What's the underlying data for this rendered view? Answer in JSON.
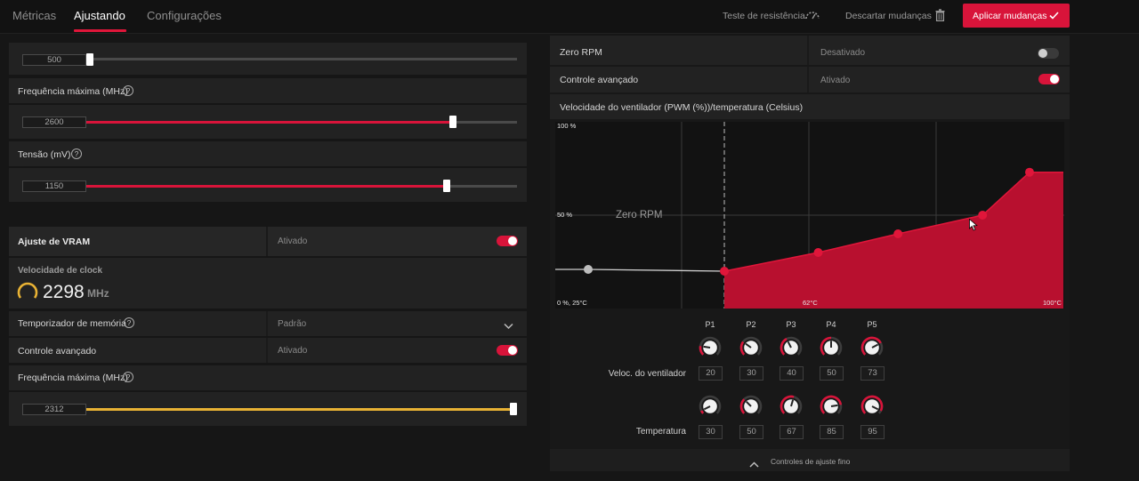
{
  "tabs": [
    {
      "label": "Métricas",
      "active": false
    },
    {
      "label": "Ajustando",
      "active": true
    },
    {
      "label": "Configurações",
      "active": false
    }
  ],
  "toolbar": {
    "stress_test": "Teste de resistência",
    "discard": "Descartar mudanças",
    "apply": "Aplicar mudanças"
  },
  "gpu": {
    "min_freq_value": "500",
    "max_freq_label": "Frequência máxima (MHz)",
    "max_freq_value": "2600",
    "voltage_label": "Tensão (mV)",
    "voltage_value": "1150"
  },
  "vram": {
    "title": "Ajuste de VRAM",
    "status": "Ativado",
    "clock_label": "Velocidade de clock",
    "clock_value": "2298",
    "clock_unit": "MHz",
    "mem_timing_label": "Temporizador de memória",
    "mem_timing_value": "Padrão",
    "advanced_label": "Controle avançado",
    "advanced_value": "Ativado",
    "max_freq_label": "Frequência máxima (MHz)",
    "max_freq_value": "2312"
  },
  "fan": {
    "zero_rpm_label": "Zero RPM",
    "zero_rpm_value": "Desativado",
    "advanced_label": "Controle avançado",
    "advanced_value": "Ativado",
    "curve_title": "Velocidade do ventilador (PWM (%))/temperatura (Celsius)",
    "zero_rpm_zone": "Zero RPM",
    "points": [
      "P1",
      "P2",
      "P3",
      "P4",
      "P5"
    ],
    "speed_row_label": "Veloc. do ventilador",
    "speeds": [
      20,
      30,
      40,
      50,
      73
    ],
    "temp_row_label": "Temperatura",
    "temps": [
      30,
      50,
      67,
      85,
      95
    ],
    "fine_tune": "Controles de ajuste fino"
  },
  "chart_data": {
    "type": "area",
    "title": "Velocidade do ventilador (PWM (%))/temperatura (Celsius)",
    "x_unit": "°C",
    "y_unit": "%",
    "series": [
      {
        "x": [
          30,
          50,
          67,
          85,
          95
        ],
        "y": [
          20,
          30,
          40,
          50,
          73
        ]
      }
    ],
    "tick_labels": {
      "y_top": "100 %",
      "y_mid": "50 %",
      "origin": "0 %, 25°C",
      "x_mid": "62°C",
      "x_max": "100°C"
    },
    "annotation": "Zero RPM",
    "colors": {
      "fill": "#b8102f",
      "point": "#e0163a",
      "line": "#d0d0d0"
    }
  },
  "colors": {
    "accent": "#d8143a",
    "vram_slider": "#e8b234",
    "clock_ring": "#e8b234"
  }
}
